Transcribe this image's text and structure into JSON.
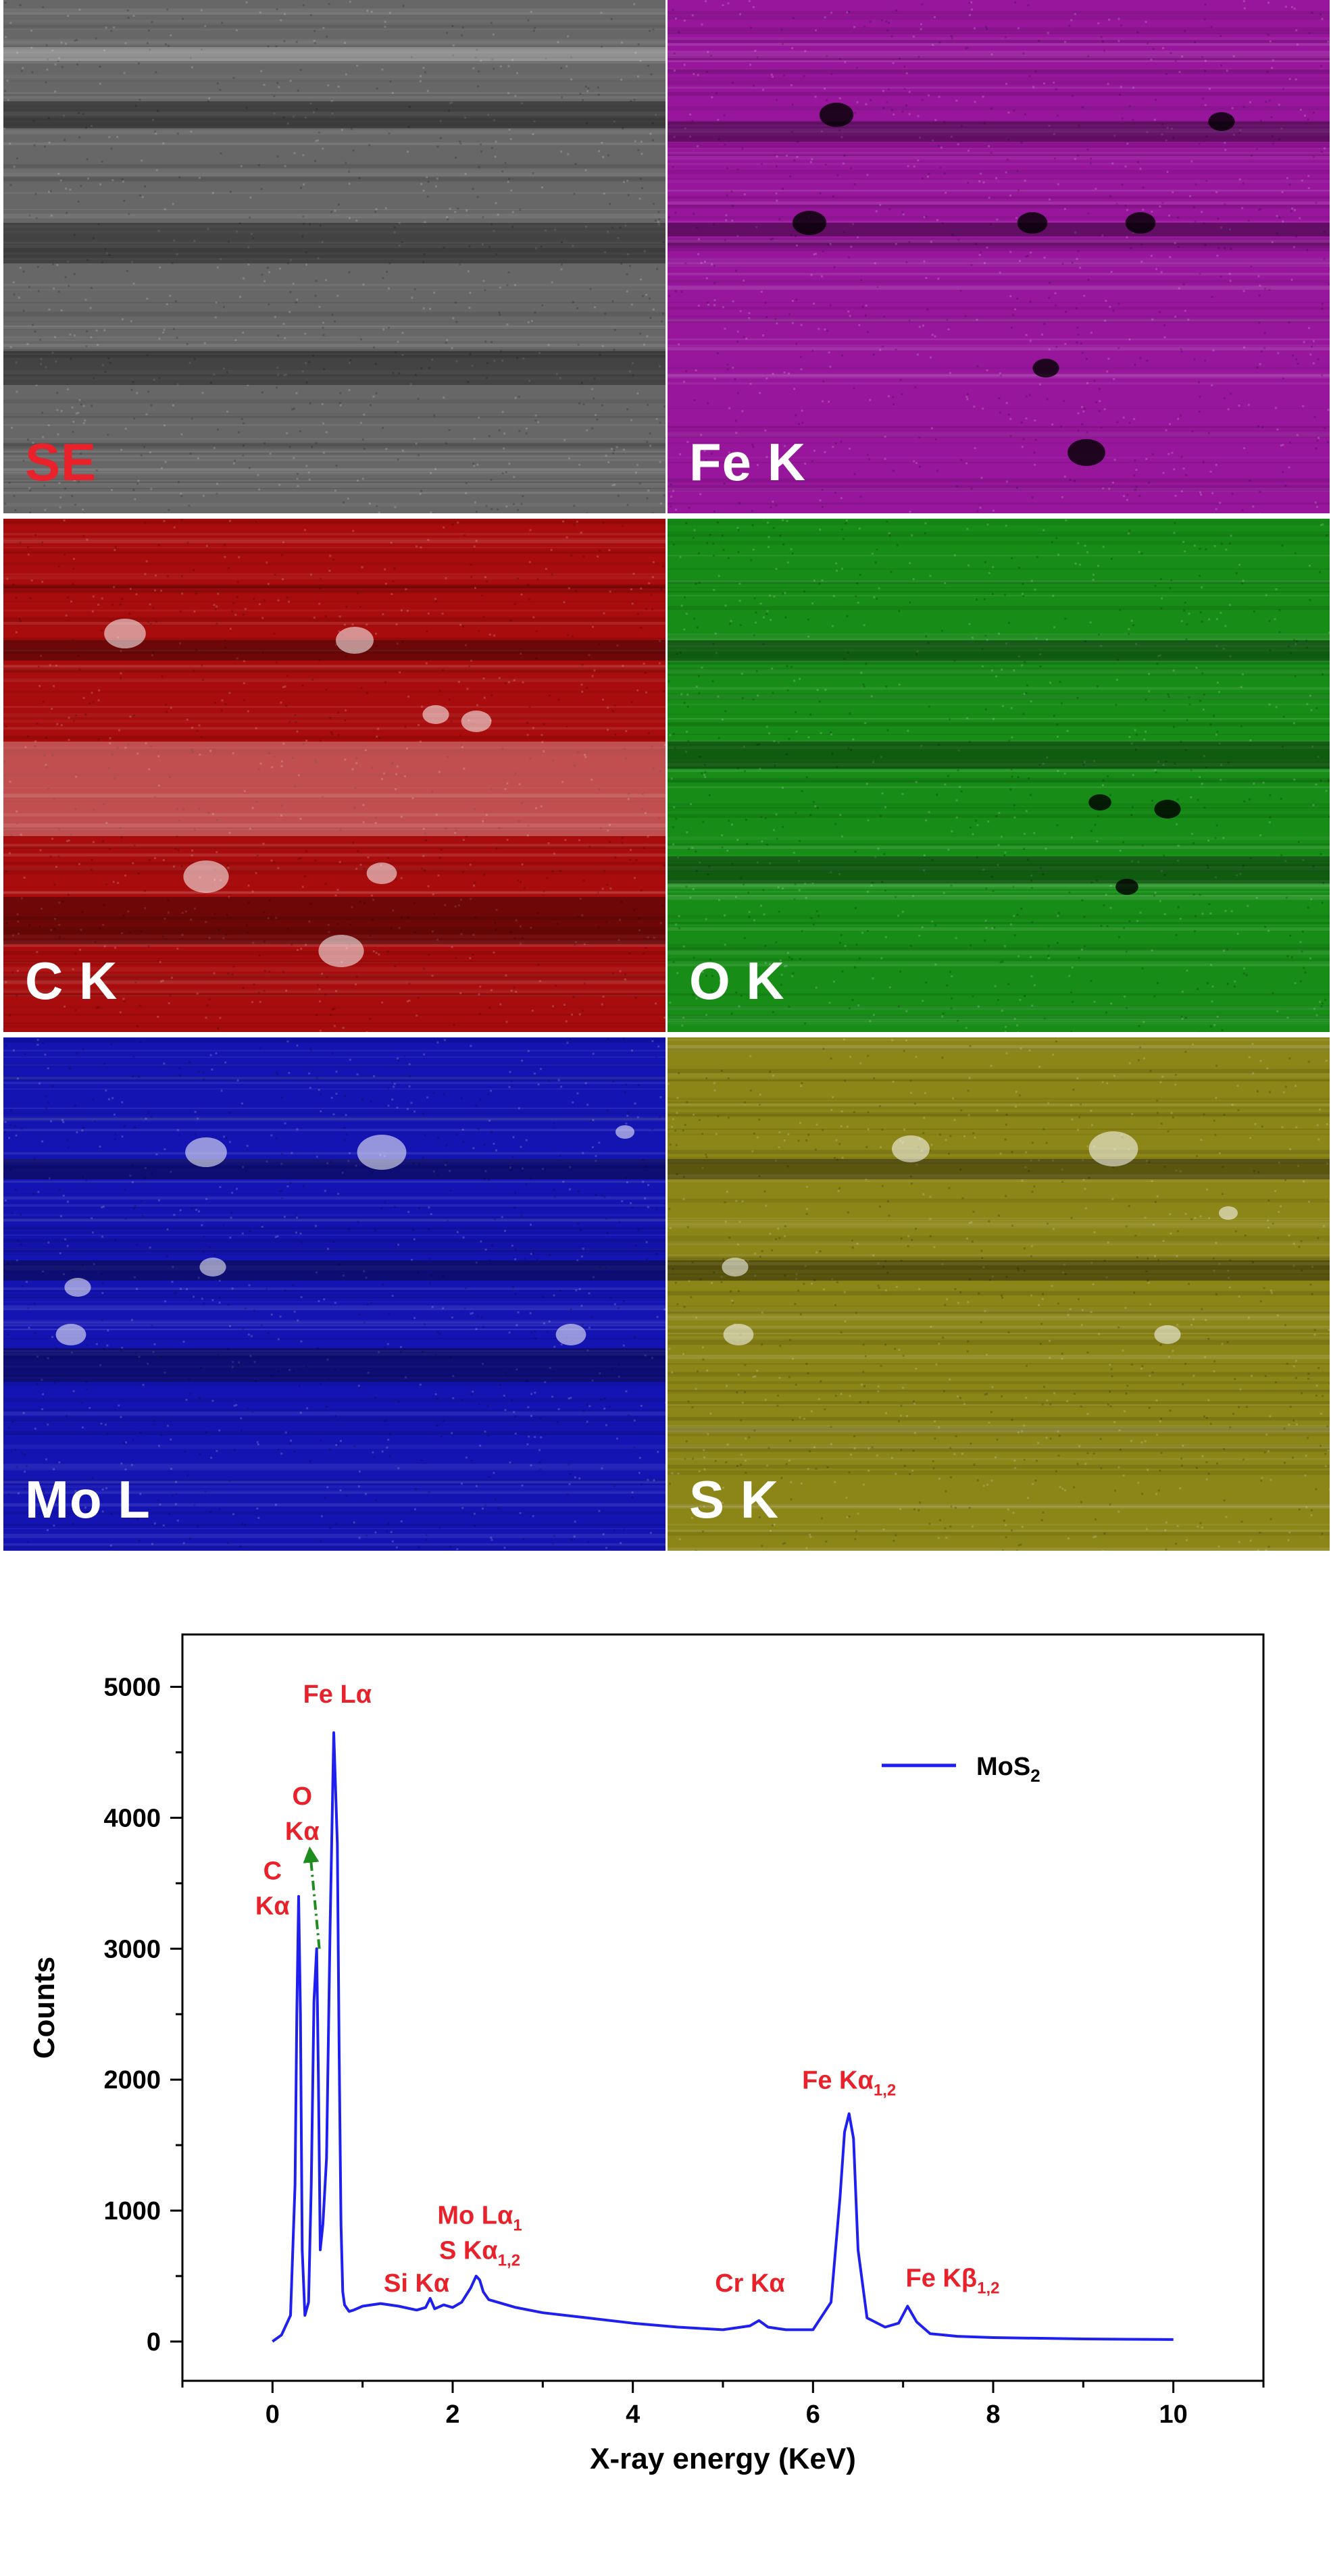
{
  "panels": [
    {
      "label": "SE",
      "label_color": "#e8212b",
      "tint": "#8a8a8a"
    },
    {
      "label": "Fe K",
      "label_color": "#ffffff",
      "tint": "#c21cc8"
    },
    {
      "label": "C K",
      "label_color": "#ffffff",
      "tint": "#d81010"
    },
    {
      "label": "O K",
      "label_color": "#ffffff",
      "tint": "#1db41d"
    },
    {
      "label": "Mo L",
      "label_color": "#ffffff",
      "tint": "#1a1ae6"
    },
    {
      "label": "S K",
      "label_color": "#ffffff",
      "tint": "#b4aa1e"
    }
  ],
  "chart_data": {
    "type": "line",
    "xlabel": "X-ray energy (KeV)",
    "ylabel": "Counts",
    "xlim": [
      -1,
      11
    ],
    "ylim": [
      -300,
      5400
    ],
    "xticks": [
      0,
      2,
      4,
      6,
      8,
      10
    ],
    "yticks": [
      0,
      1000,
      2000,
      3000,
      4000,
      5000
    ],
    "grid": false,
    "legend_position": "top-right",
    "series": [
      {
        "name": "MoS2",
        "color": "#1f1ff0",
        "x": [
          0.0,
          0.1,
          0.2,
          0.25,
          0.27,
          0.29,
          0.31,
          0.33,
          0.36,
          0.4,
          0.43,
          0.46,
          0.49,
          0.51,
          0.53,
          0.56,
          0.6,
          0.64,
          0.68,
          0.72,
          0.74,
          0.76,
          0.78,
          0.8,
          0.85,
          0.9,
          1.0,
          1.2,
          1.4,
          1.6,
          1.7,
          1.75,
          1.8,
          1.9,
          2.0,
          2.1,
          2.2,
          2.26,
          2.3,
          2.34,
          2.4,
          2.5,
          2.7,
          3.0,
          3.5,
          4.0,
          4.5,
          5.0,
          5.3,
          5.4,
          5.5,
          5.7,
          6.0,
          6.2,
          6.3,
          6.35,
          6.4,
          6.45,
          6.5,
          6.6,
          6.8,
          6.95,
          7.05,
          7.15,
          7.3,
          7.6,
          8.0,
          9.0,
          10.0
        ],
        "y": [
          0,
          50,
          200,
          1200,
          2500,
          3400,
          2500,
          700,
          200,
          300,
          1200,
          2600,
          3000,
          2000,
          700,
          900,
          1400,
          3200,
          4650,
          3800,
          2200,
          900,
          380,
          280,
          230,
          240,
          270,
          290,
          270,
          240,
          260,
          330,
          250,
          280,
          260,
          300,
          410,
          500,
          470,
          380,
          320,
          300,
          260,
          220,
          180,
          140,
          110,
          90,
          120,
          160,
          110,
          90,
          90,
          300,
          1100,
          1600,
          1740,
          1550,
          700,
          180,
          110,
          140,
          270,
          150,
          60,
          40,
          30,
          20,
          15
        ]
      }
    ],
    "legend": {
      "label": "MoS",
      "sub": "2"
    },
    "annotations": [
      {
        "key": "fe-la",
        "lines": [
          {
            "text": "Fe L",
            "greek": "α"
          }
        ],
        "x": 0.72,
        "y": 4880
      },
      {
        "key": "o-ka",
        "lines": [
          {
            "text": "O"
          },
          {
            "text": "K",
            "greek": "α"
          }
        ],
        "x": 0.33,
        "y": 4100
      },
      {
        "key": "c-ka",
        "lines": [
          {
            "text": "C"
          },
          {
            "text": "K",
            "greek": "α"
          }
        ],
        "x": 0.0,
        "y": 3530
      },
      {
        "key": "si-ka",
        "lines": [
          {
            "text": "Si K",
            "greek": "α"
          }
        ],
        "x": 1.6,
        "y": 380
      },
      {
        "key": "mo-la",
        "lines": [
          {
            "text": "Mo L",
            "greek": "α",
            "sub": "1"
          },
          {
            "text": "S K",
            "greek": "α",
            "sub": "1,2"
          }
        ],
        "x": 2.3,
        "y": 900
      },
      {
        "key": "cr-ka",
        "lines": [
          {
            "text": "Cr K",
            "greek": "α"
          }
        ],
        "x": 5.3,
        "y": 380
      },
      {
        "key": "fe-ka",
        "lines": [
          {
            "text": "Fe K",
            "greek": "α",
            "sub": "1,2"
          }
        ],
        "x": 6.4,
        "y": 1930
      },
      {
        "key": "fe-kb",
        "lines": [
          {
            "text": "Fe K",
            "greek": "β",
            "sub": "1,2"
          }
        ],
        "x": 7.55,
        "y": 420
      }
    ],
    "arrow": {
      "x1": 0.52,
      "y1": 3000,
      "x2": 0.42,
      "y2": 3720,
      "color": "#1e8c1e"
    },
    "annotation_color": "#e8212b"
  }
}
